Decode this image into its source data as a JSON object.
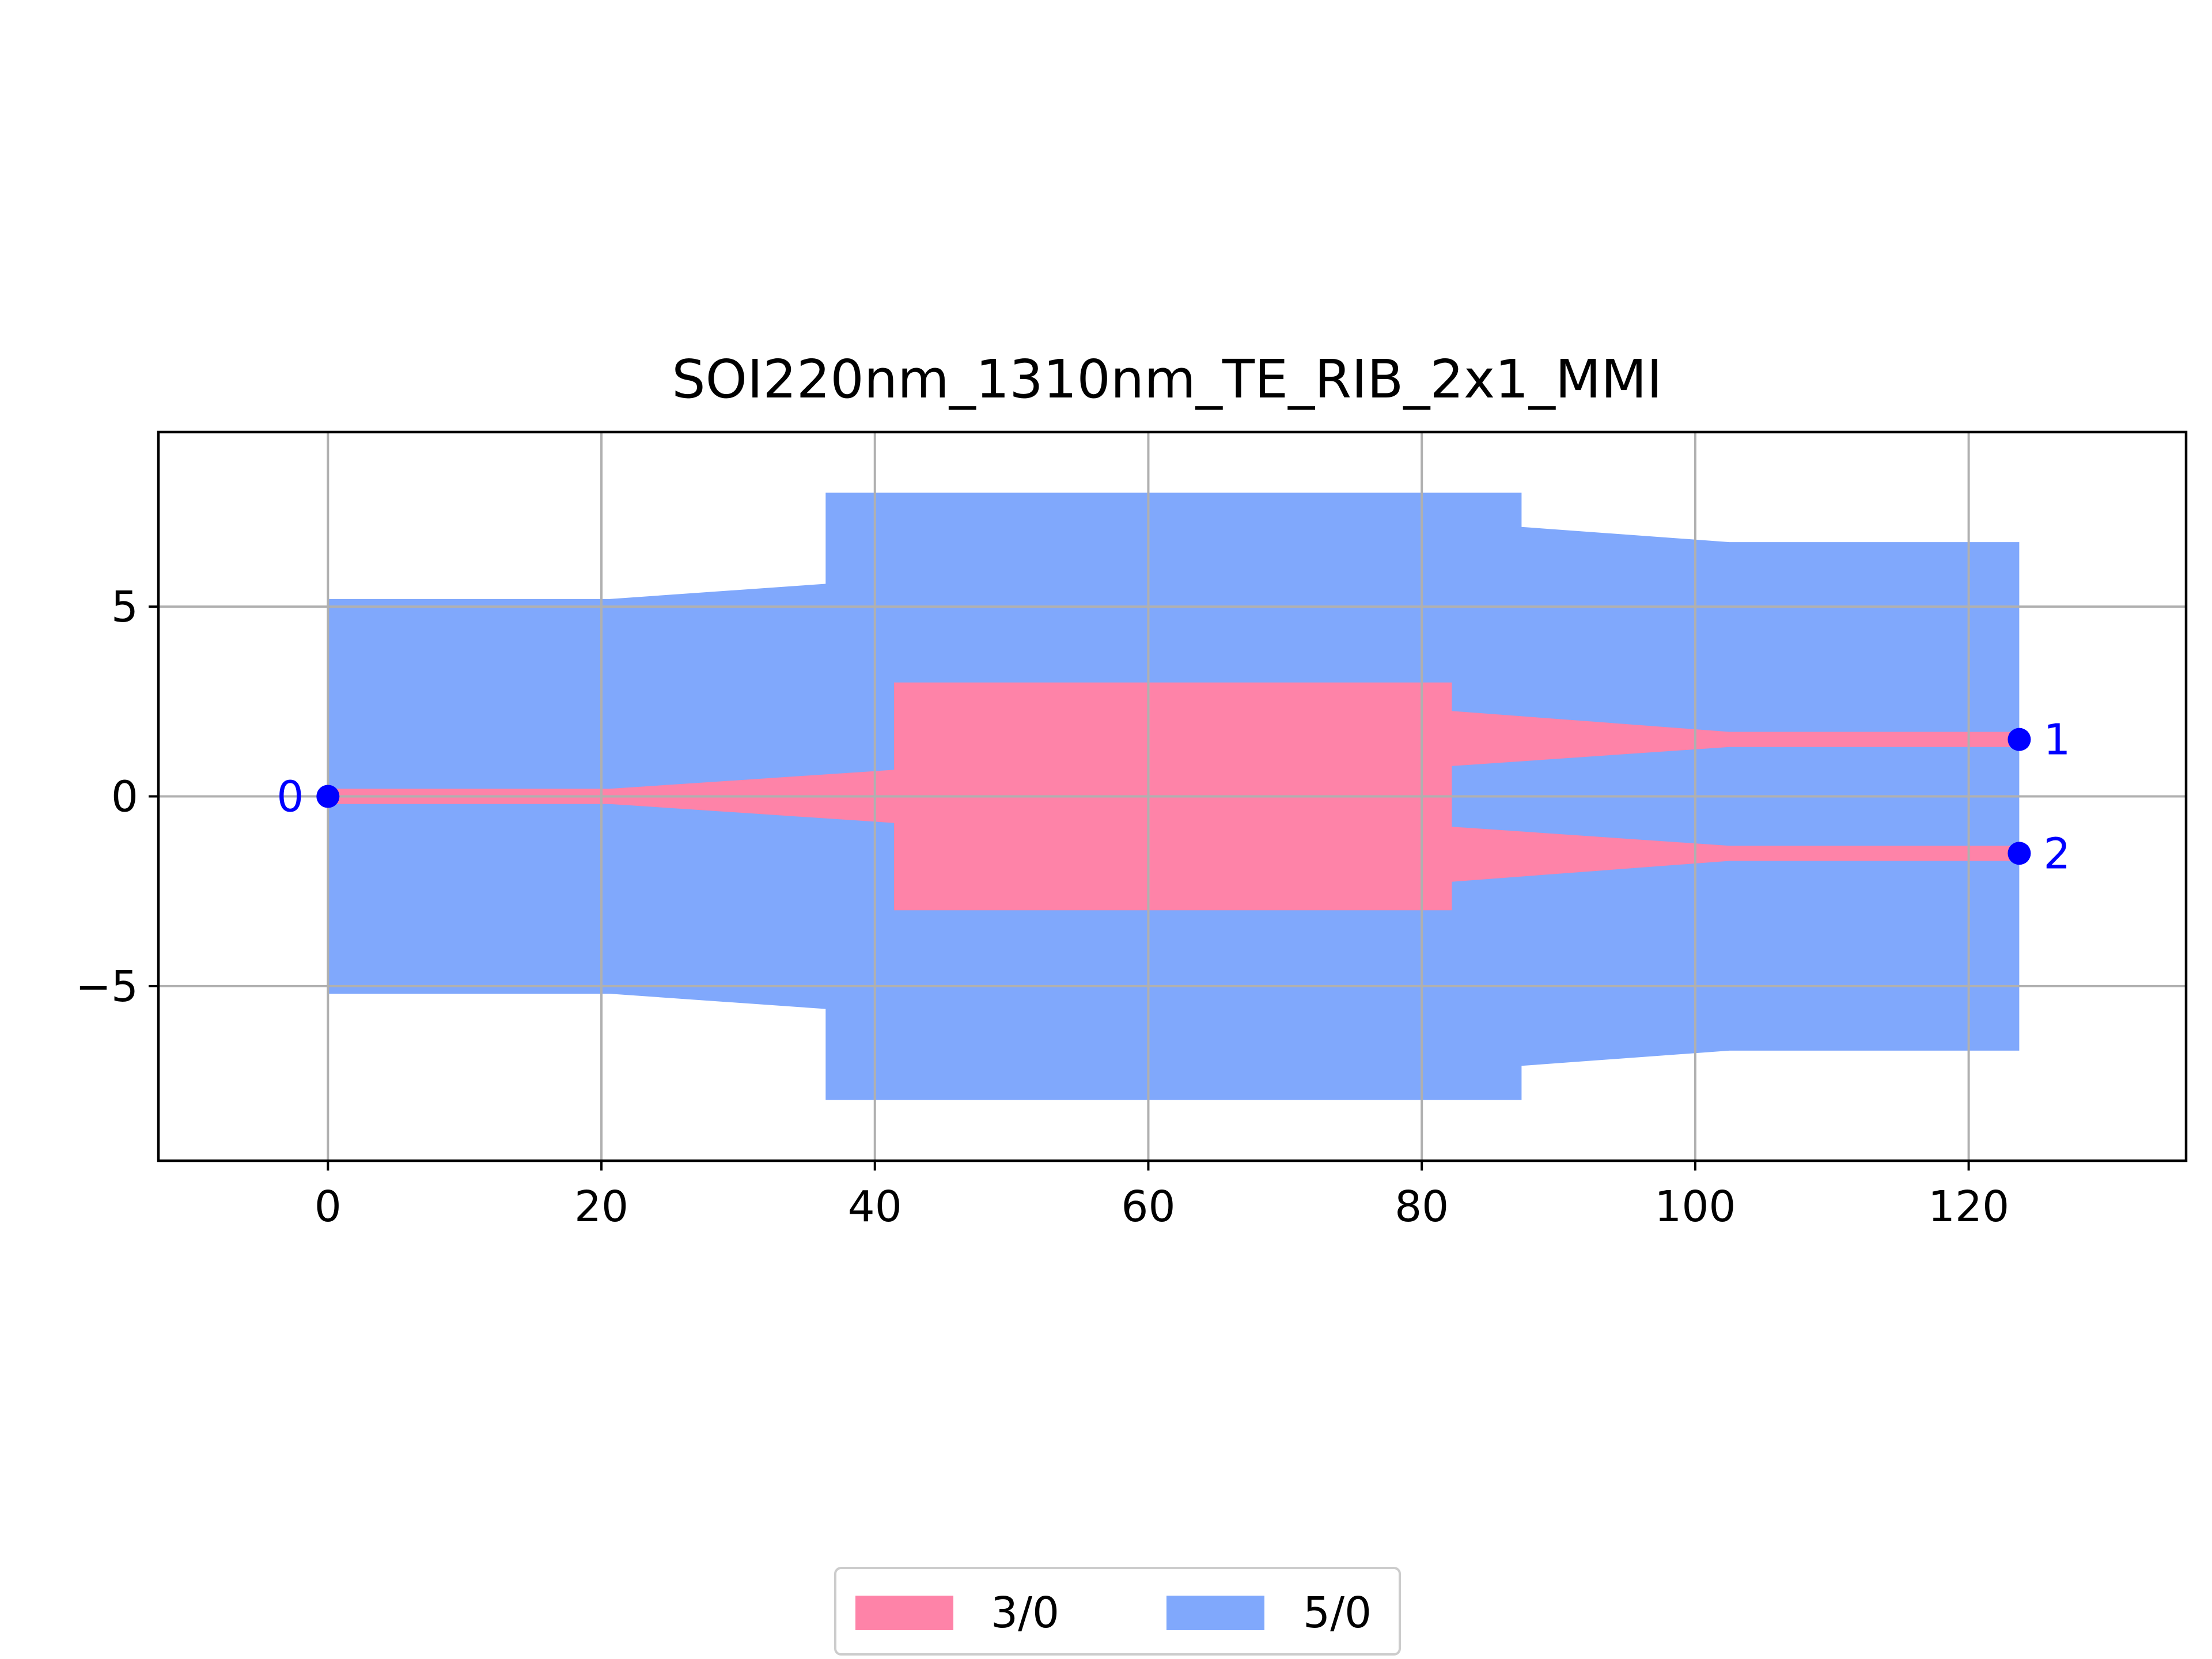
{
  "chart_data": {
    "type": "layout",
    "title": "SOI220nm_1310nm_TE_RIB_2x1_MMI",
    "xlabel": "",
    "ylabel": "",
    "xlim": [
      -12.4,
      135.9
    ],
    "ylim": [
      -9.6,
      9.6
    ],
    "x_ticks": [
      0,
      20,
      40,
      60,
      80,
      100,
      120
    ],
    "x_tick_labels": [
      "0",
      "20",
      "40",
      "60",
      "80",
      "100",
      "120"
    ],
    "y_ticks": [
      5,
      0,
      -5
    ],
    "y_tick_labels": [
      "5",
      "0",
      "−5"
    ],
    "grid": true,
    "legend_position": "bottom-center",
    "layers": [
      {
        "name": "5/0",
        "color": "#80a8fc",
        "polygon": [
          [
            0,
            5.2
          ],
          [
            20.6,
            5.2
          ],
          [
            36.4,
            5.6
          ],
          [
            36.4,
            8.0
          ],
          [
            87.3,
            8.0
          ],
          [
            87.3,
            7.1
          ],
          [
            102.5,
            6.7
          ],
          [
            123.7,
            6.7
          ],
          [
            123.7,
            -6.7
          ],
          [
            102.5,
            -6.7
          ],
          [
            87.3,
            -7.1
          ],
          [
            87.3,
            -8.0
          ],
          [
            36.4,
            -8.0
          ],
          [
            36.4,
            -5.6
          ],
          [
            20.6,
            -5.2
          ],
          [
            0,
            -5.2
          ]
        ]
      },
      {
        "name": "3/0",
        "color": "#fe83a8",
        "polygon": [
          [
            0,
            0.2
          ],
          [
            20.6,
            0.2
          ],
          [
            41.4,
            0.7
          ],
          [
            41.4,
            3.0
          ],
          [
            82.2,
            3.0
          ],
          [
            82.2,
            2.25
          ],
          [
            102.5,
            1.7
          ],
          [
            123.7,
            1.7
          ],
          [
            123.7,
            1.3
          ],
          [
            102.5,
            1.3
          ],
          [
            82.2,
            0.8
          ],
          [
            82.2,
            -0.8
          ],
          [
            102.5,
            -1.3
          ],
          [
            123.7,
            -1.3
          ],
          [
            123.7,
            -1.7
          ],
          [
            102.5,
            -1.7
          ],
          [
            82.2,
            -2.25
          ],
          [
            82.2,
            -3.0
          ],
          [
            41.4,
            -3.0
          ],
          [
            41.4,
            -0.7
          ],
          [
            20.6,
            -0.2
          ],
          [
            0,
            -0.2
          ]
        ]
      }
    ],
    "ports": [
      {
        "label": "0",
        "x": 0,
        "y": 0,
        "label_side": "left"
      },
      {
        "label": "1",
        "x": 123.7,
        "y": 1.5,
        "label_side": "right"
      },
      {
        "label": "2",
        "x": 123.7,
        "y": -1.5,
        "label_side": "right"
      }
    ],
    "port_color": "#0000ff",
    "legend": [
      {
        "label": "3/0",
        "color": "#fe83a8"
      },
      {
        "label": "5/0",
        "color": "#80a8fc"
      }
    ]
  }
}
